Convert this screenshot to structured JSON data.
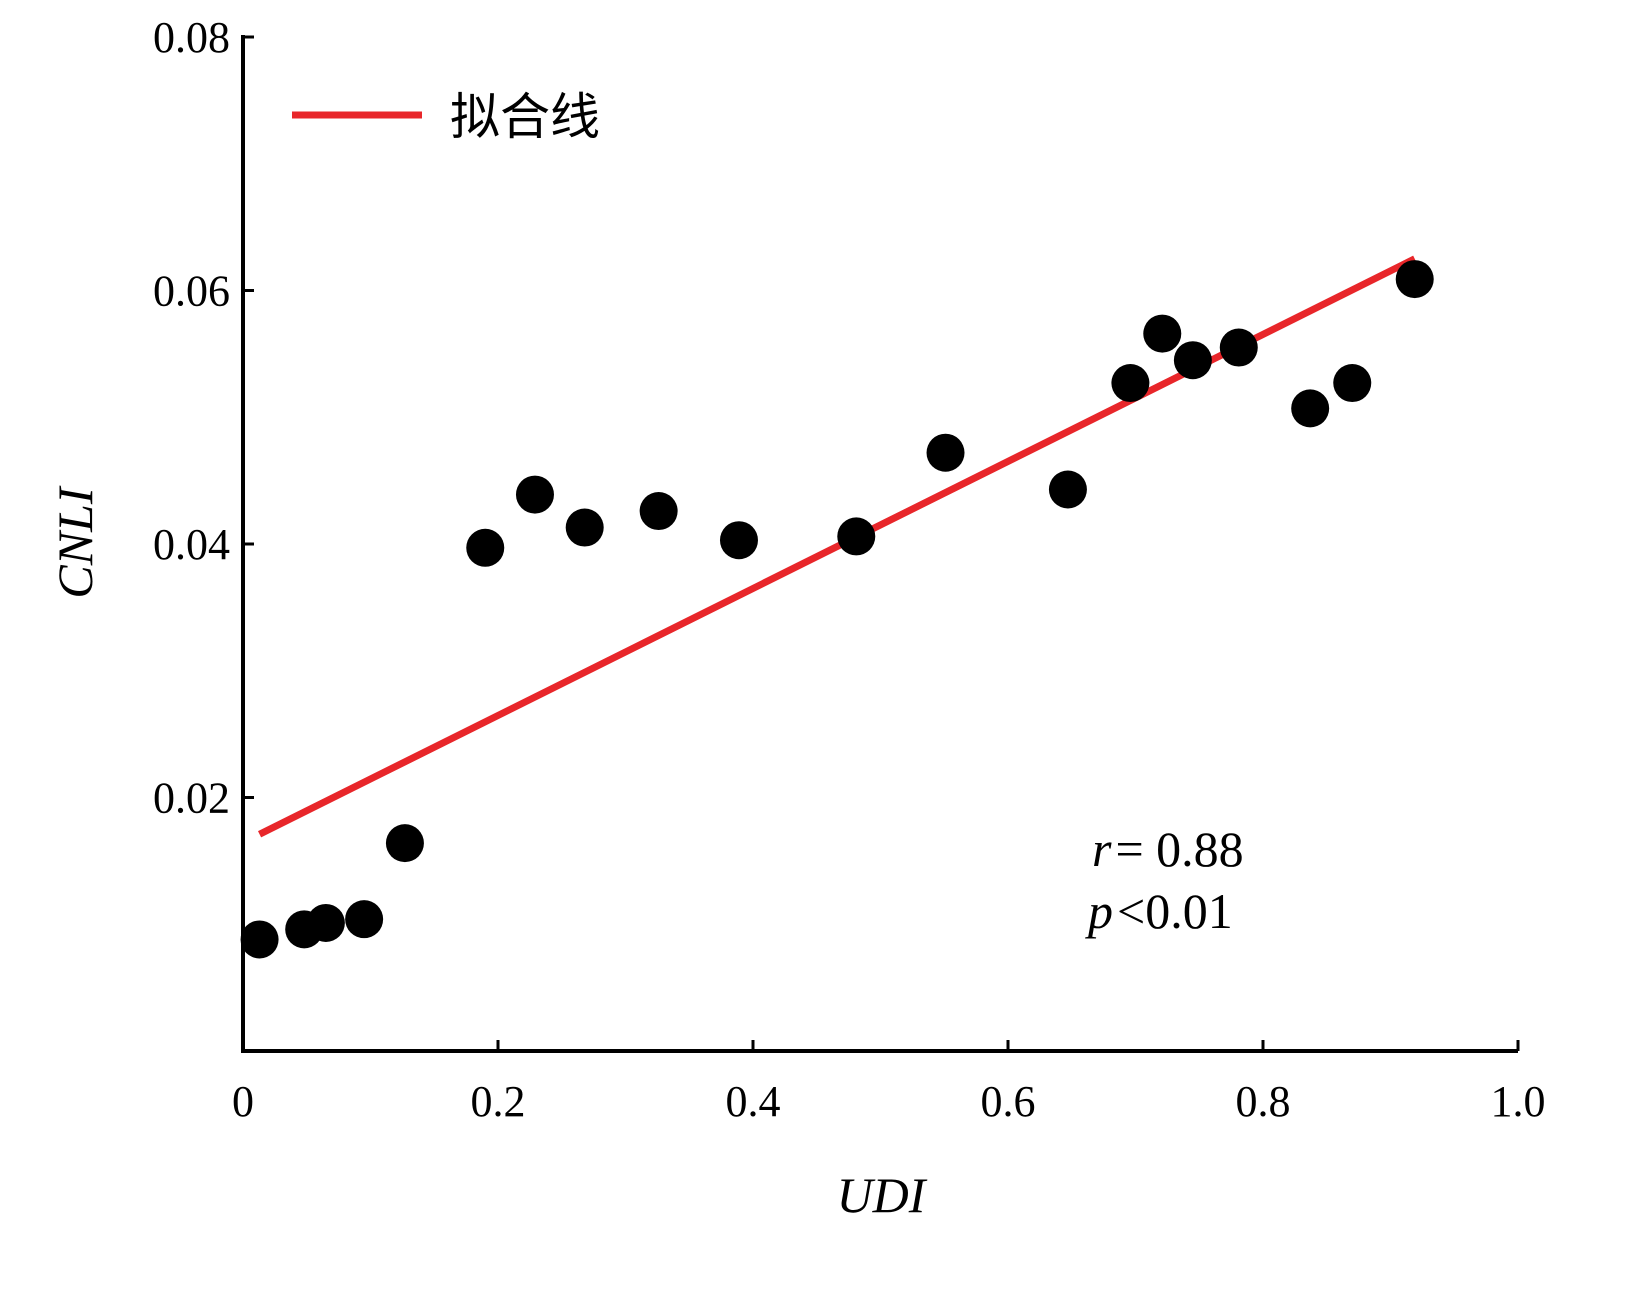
{
  "chart_data": {
    "type": "scatter",
    "xlabel": "UDI",
    "ylabel": "CNLI",
    "xlim": [
      0,
      1.0
    ],
    "ylim": [
      0,
      0.08
    ],
    "x_ticks": [
      0,
      0.2,
      0.4,
      0.6,
      0.8,
      1.0
    ],
    "x_tick_labels": [
      "0",
      "0.2",
      "0.4",
      "0.6",
      "0.8",
      "1.0"
    ],
    "y_ticks": [
      0.02,
      0.04,
      0.06,
      0.08
    ],
    "y_tick_labels": [
      "0.02",
      "0.04",
      "0.06",
      "0.08"
    ],
    "grid": false,
    "legend": {
      "position": "top-left",
      "entries": [
        {
          "label": "拟合线",
          "color": "#e8262a"
        }
      ]
    },
    "series": [
      {
        "type": "scatter",
        "color": "#000000",
        "points": [
          {
            "x": 0.013,
            "y": 0.0088
          },
          {
            "x": 0.048,
            "y": 0.0096
          },
          {
            "x": 0.065,
            "y": 0.0101
          },
          {
            "x": 0.095,
            "y": 0.0104
          },
          {
            "x": 0.127,
            "y": 0.0164
          },
          {
            "x": 0.19,
            "y": 0.0397
          },
          {
            "x": 0.229,
            "y": 0.0439
          },
          {
            "x": 0.268,
            "y": 0.0413
          },
          {
            "x": 0.326,
            "y": 0.0426
          },
          {
            "x": 0.389,
            "y": 0.0403
          },
          {
            "x": 0.481,
            "y": 0.0406
          },
          {
            "x": 0.551,
            "y": 0.0472
          },
          {
            "x": 0.647,
            "y": 0.0443
          },
          {
            "x": 0.696,
            "y": 0.0527
          },
          {
            "x": 0.721,
            "y": 0.0566
          },
          {
            "x": 0.745,
            "y": 0.0545
          },
          {
            "x": 0.781,
            "y": 0.0555
          },
          {
            "x": 0.837,
            "y": 0.0507
          },
          {
            "x": 0.87,
            "y": 0.0527
          },
          {
            "x": 0.919,
            "y": 0.0609
          }
        ]
      },
      {
        "name": "拟合线",
        "type": "line",
        "color": "#e8262a",
        "points": [
          {
            "x": 0.013,
            "y": 0.0171
          },
          {
            "x": 0.919,
            "y": 0.0625
          }
        ]
      }
    ],
    "annotations": {
      "r_symbol": "r",
      "r_text": "= 0.88",
      "p_symbol": "p",
      "p_text": "<0.01"
    }
  }
}
